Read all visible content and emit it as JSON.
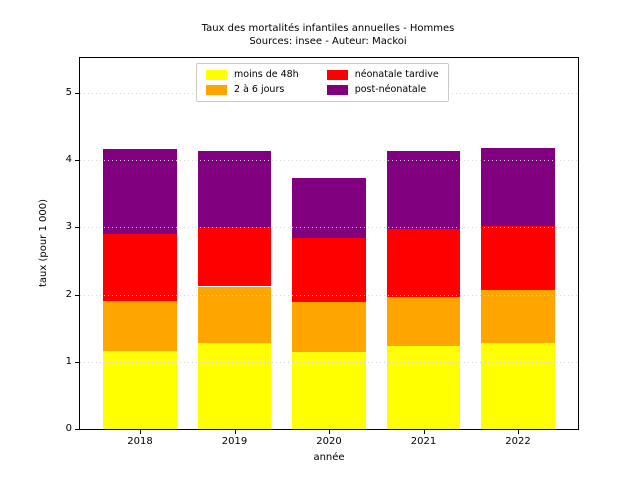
{
  "title": "Taux des mortalités infantiles annuelles - Hommes",
  "subtitle": "Sources: insee - Auteur: Mackoi",
  "chart_data": {
    "type": "bar",
    "stacked": true,
    "title": "Taux des mortalités infantiles annuelles - Hommes",
    "subtitle": "Sources: insee - Auteur: Mackoi",
    "xlabel": "année",
    "ylabel": "taux (pour 1 000)",
    "categories": [
      "2018",
      "2019",
      "2020",
      "2021",
      "2022"
    ],
    "series": [
      {
        "name": "moins de 48h",
        "color": "#ffff00",
        "values": [
          1.16,
          1.28,
          1.15,
          1.24,
          1.28
        ]
      },
      {
        "name": "2 à 6 jours",
        "color": "#ffa500",
        "values": [
          0.75,
          0.84,
          0.74,
          0.73,
          0.79
        ]
      },
      {
        "name": "néonatale tardive",
        "color": "#ff0000",
        "values": [
          0.99,
          0.88,
          0.95,
          1.01,
          0.95
        ]
      },
      {
        "name": "post-néonatale",
        "color": "#800080",
        "values": [
          1.26,
          1.13,
          0.89,
          1.15,
          1.16
        ]
      }
    ],
    "stack_totals": [
      4.16,
      4.13,
      3.73,
      4.13,
      4.18
    ],
    "y_ticks": [
      0,
      1,
      2,
      3,
      4,
      5
    ],
    "ylim": [
      0,
      5.52
    ],
    "grid": "horizontal dotted, drawn over bars",
    "legend_position": "upper center, 2 columns",
    "bar_width_fraction": 0.78
  }
}
